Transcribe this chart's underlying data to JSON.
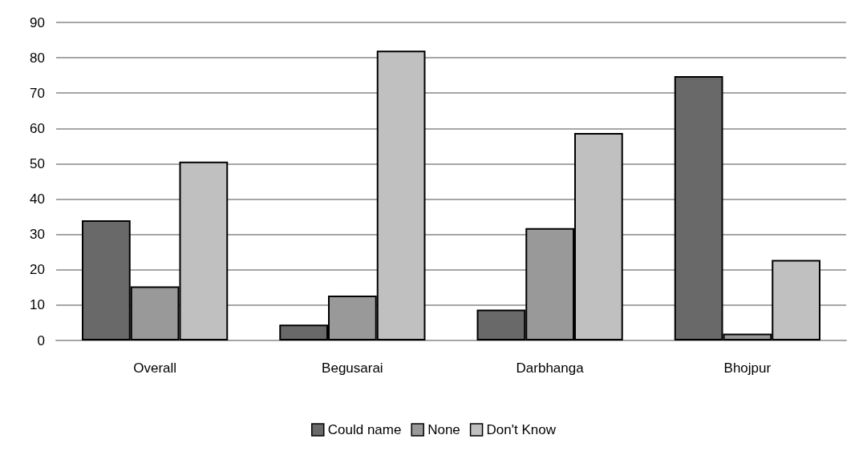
{
  "chart_data": {
    "type": "bar",
    "categories": [
      "Overall",
      "Begusarai",
      "Darbhanga",
      "Bhojpur"
    ],
    "series": [
      {
        "name": "Could name",
        "color": "#696969",
        "values": [
          34,
          4.5,
          8.7,
          74.8
        ]
      },
      {
        "name": "None",
        "color": "#999999",
        "values": [
          15.3,
          12.7,
          31.8,
          1.9
        ]
      },
      {
        "name": "Don't Know",
        "color": "#c0c0c0",
        "values": [
          50.6,
          82,
          58.7,
          22.8
        ]
      }
    ],
    "ylim": [
      0,
      90
    ],
    "yticks": [
      0,
      10,
      20,
      30,
      40,
      50,
      60,
      70,
      80,
      90
    ],
    "grid": "y",
    "legend": "bottom"
  }
}
